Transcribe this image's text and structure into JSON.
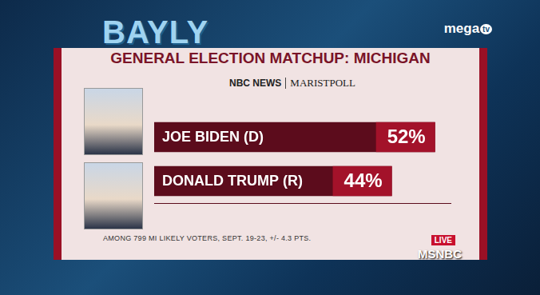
{
  "chart_data": {
    "type": "bar",
    "orientation": "horizontal",
    "title": "GENERAL ELECTION MATCHUP: MICHIGAN",
    "source": [
      "NBC NEWS",
      "MARISTPOLL"
    ],
    "categories": [
      "JOE BIDEN (D)",
      "DONALD TRUMP (R)"
    ],
    "values": [
      52,
      44
    ],
    "value_labels": [
      "52%",
      "44%"
    ],
    "colors": [
      "#5c0c1c",
      "#5c0c1c"
    ],
    "xlim": [
      0,
      55
    ],
    "tick_labels": false,
    "grid": false,
    "data_labels": true,
    "note": "AMONG 799 MI LIKELY VOTERS, SEPT. 19-23, +/- 4.3 PTS."
  },
  "overlay": {
    "show": "BAYLY",
    "channel": [
      "mega",
      "tv"
    ],
    "live": "LIVE",
    "network": "MSNBC"
  }
}
